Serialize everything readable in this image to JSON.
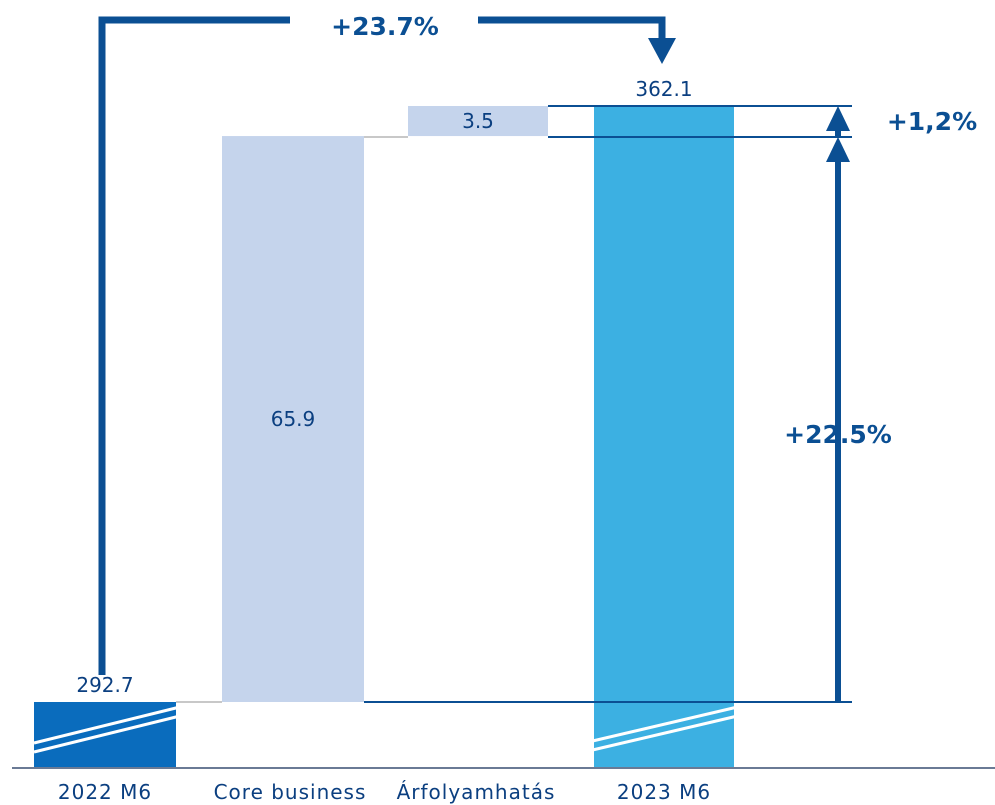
{
  "chart_data": {
    "type": "bar",
    "categories": [
      "2022 M6",
      "Core business",
      "Árfolyamhatás",
      "2023 M6"
    ],
    "values": [
      292.7,
      65.9,
      3.5,
      362.1
    ],
    "value_labels": [
      "292.7",
      "65.9",
      "3.5",
      "362.1"
    ],
    "measures": [
      "total",
      "relative",
      "relative",
      "total"
    ],
    "title": "",
    "xlabel": "",
    "ylabel": "",
    "axis_break": true,
    "annotations": {
      "total_change": "+23.7%",
      "fx_change": "+1,2%",
      "core_change": "+22.5%"
    },
    "colors": {
      "start_total": "#0a6cbd",
      "delta": "#c5d4ec",
      "end_total": "#3cb0e2",
      "annotation": "#0b4f93",
      "text": "#0b3f80"
    }
  }
}
